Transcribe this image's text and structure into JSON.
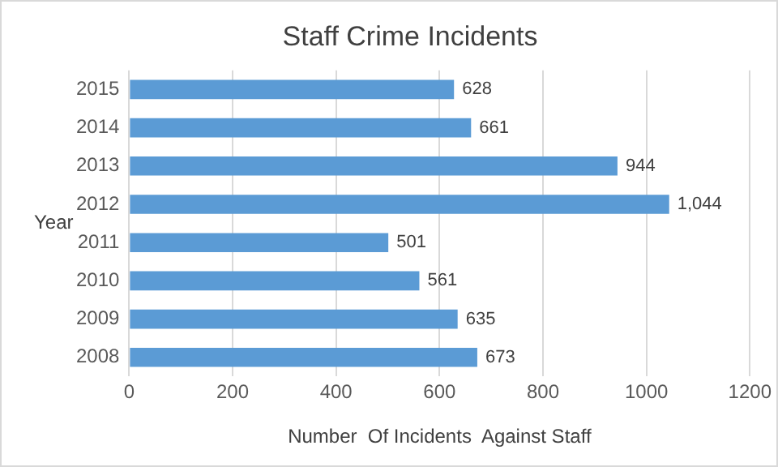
{
  "chart_data": {
    "type": "bar",
    "orientation": "horizontal",
    "title": "Staff Crime Incidents",
    "xlabel": "Number  Of Incidents  Against Staff",
    "ylabel": "Year",
    "categories": [
      "2015",
      "2014",
      "2013",
      "2012",
      "2011",
      "2010",
      "2009",
      "2008"
    ],
    "values": [
      628,
      661,
      944,
      1044,
      501,
      561,
      635,
      673
    ],
    "value_labels": [
      "628",
      "661",
      "944",
      "1,044",
      "501",
      "561",
      "635",
      "673"
    ],
    "color": "#5b9bd5",
    "xlim": [
      0,
      1200
    ],
    "xticks": [
      0,
      200,
      400,
      600,
      800,
      1000,
      1200
    ],
    "grid": "x",
    "legend": false
  }
}
